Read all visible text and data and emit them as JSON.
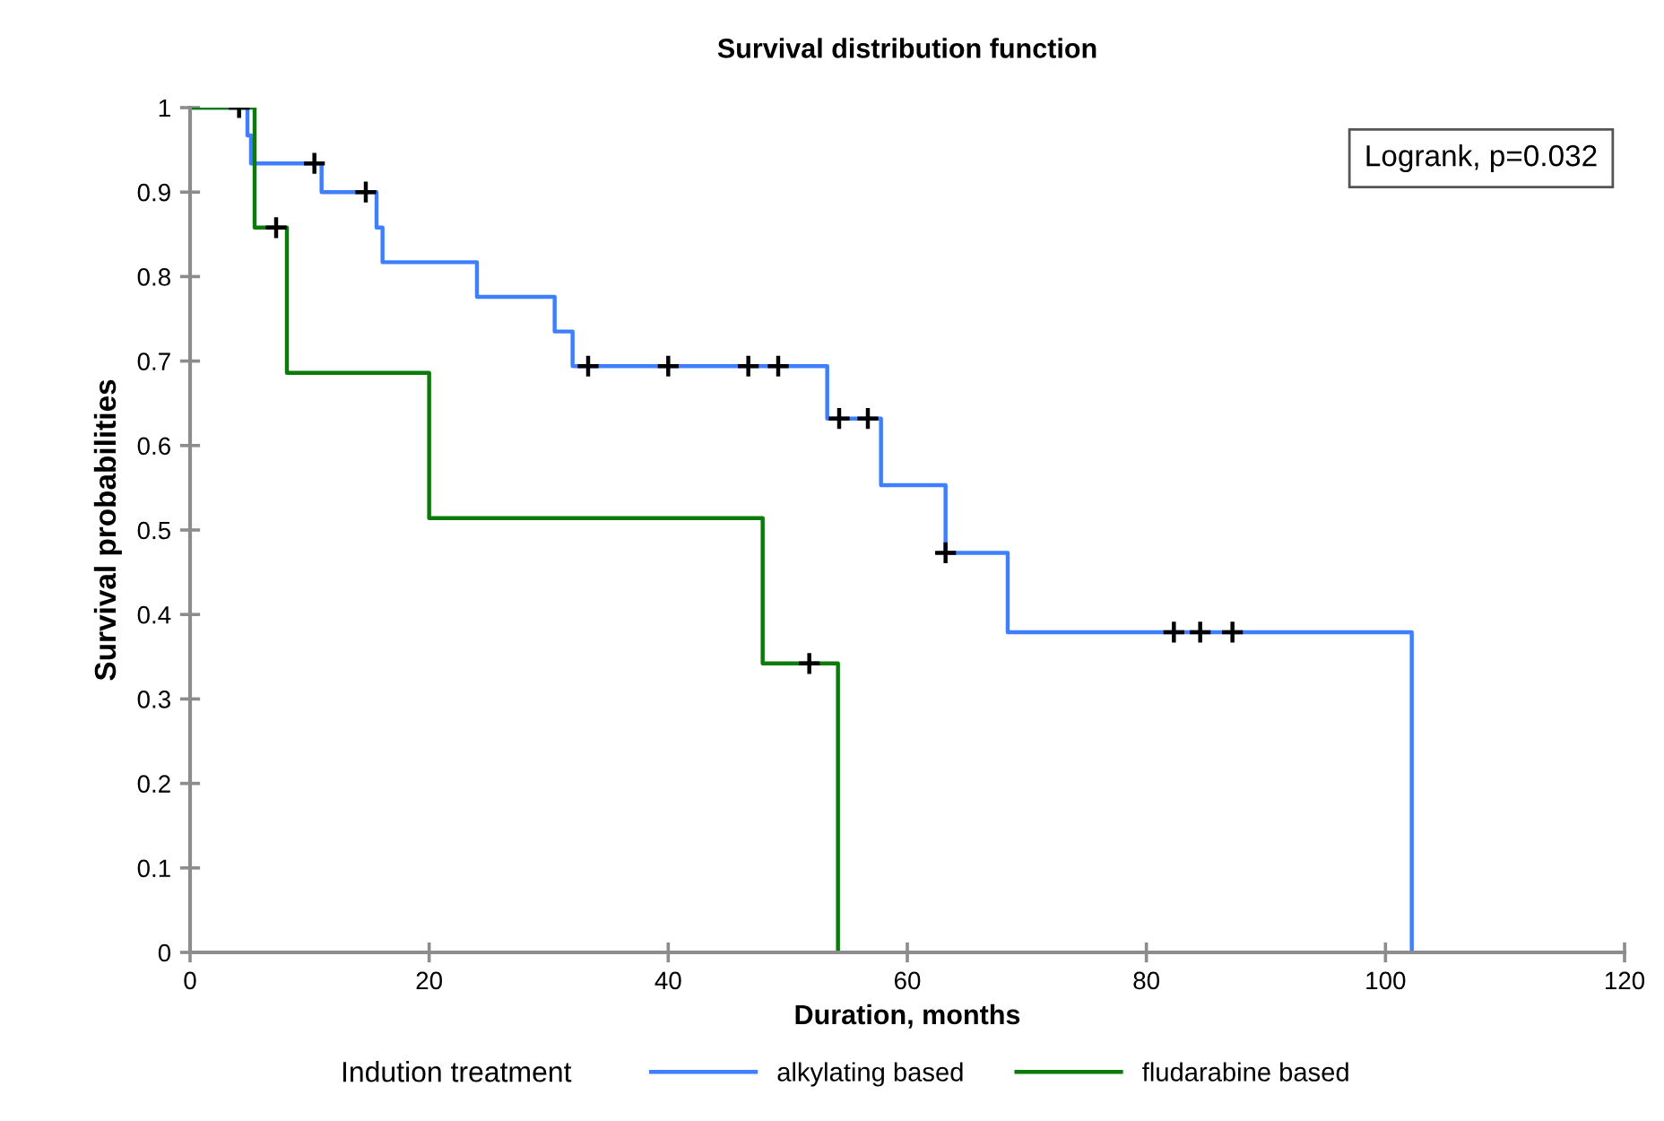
{
  "chart_data": {
    "type": "step",
    "title": "Survival distribution function",
    "xlabel": "Duration, months",
    "ylabel": "Survival probabilities",
    "legend_title": "Indution treatment",
    "annotations": [
      "Logrank, p=0.032"
    ],
    "xlim": [
      0,
      120
    ],
    "xticks": [
      0,
      20,
      40,
      60,
      80,
      100,
      120
    ],
    "ylim": [
      0,
      1
    ],
    "yticks": [
      0,
      0.1,
      0.2,
      0.3,
      0.4,
      0.5,
      0.6,
      0.7,
      0.8,
      0.9,
      1
    ],
    "grid": false,
    "legend": "bottom",
    "series": [
      {
        "name": "alkylating based",
        "color": "#3f7fff",
        "x": [
          0,
          4.8,
          5.1,
          11.0,
          15.6,
          16.1,
          24.0,
          30.5,
          32.0,
          53.3,
          57.8,
          63.2,
          68.4,
          102.2
        ],
        "values": [
          1,
          0.967,
          0.934,
          0.9,
          0.858,
          0.817,
          0.776,
          0.735,
          0.694,
          0.632,
          0.553,
          0.473,
          0.379,
          0
        ]
      },
      {
        "name": "fludarabine based",
        "color": "#0a7a0a",
        "x": [
          0,
          5.4,
          8.1,
          20.0,
          47.9,
          54.2
        ],
        "values": [
          1,
          0.858,
          0.686,
          0.514,
          0.342,
          0
        ]
      },
      {
        "color": "#000000",
        "type": "scatter",
        "marker": "cross",
        "x": [
          4.1,
          10.4,
          14.7,
          33.3,
          40.0,
          46.7,
          49.2,
          54.3,
          56.7,
          63.2,
          82.3,
          84.5,
          87.2,
          7.2,
          51.8
        ],
        "values": [
          1,
          0.934,
          0.9,
          0.694,
          0.694,
          0.694,
          0.694,
          0.632,
          0.632,
          0.473,
          0.379,
          0.379,
          0.379,
          0.858,
          0.342
        ]
      }
    ]
  }
}
